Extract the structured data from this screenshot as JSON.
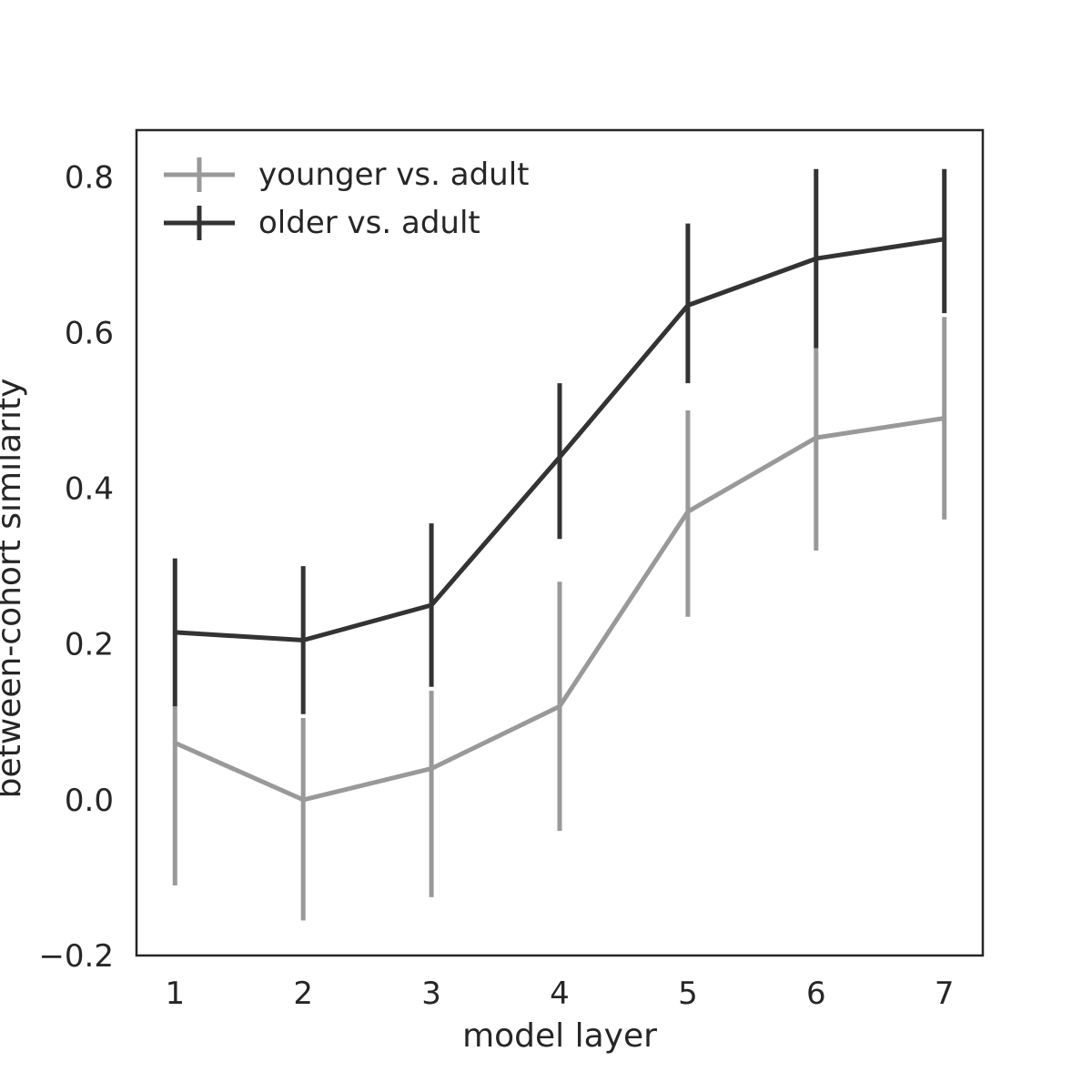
{
  "chart_data": {
    "type": "line",
    "title": "",
    "xlabel": "model layer",
    "ylabel": "between-cohort similarity",
    "x": [
      1,
      2,
      3,
      4,
      5,
      6,
      7
    ],
    "xlim": [
      0.7,
      7.3
    ],
    "ylim": [
      -0.2,
      0.86
    ],
    "yticks": [
      -0.2,
      0.0,
      0.2,
      0.4,
      0.6,
      0.8
    ],
    "ytick_labels": [
      "−0.2",
      "0.0",
      "0.2",
      "0.4",
      "0.6",
      "0.8"
    ],
    "xtick_labels": [
      "1",
      "2",
      "3",
      "4",
      "5",
      "6",
      "7"
    ],
    "grid": false,
    "legend_position": "top-left",
    "series": [
      {
        "name": "younger vs. adult",
        "color": "#999999",
        "values": [
          0.073,
          0.0,
          0.04,
          0.12,
          0.37,
          0.465,
          0.49
        ],
        "err_low": [
          -0.11,
          -0.155,
          -0.125,
          -0.04,
          0.235,
          0.32,
          0.36
        ],
        "err_high": [
          0.12,
          0.105,
          0.14,
          0.28,
          0.5,
          0.58,
          0.62
        ]
      },
      {
        "name": "older vs. adult",
        "color": "#333333",
        "values": [
          0.215,
          0.205,
          0.25,
          0.44,
          0.635,
          0.695,
          0.72
        ],
        "err_low": [
          0.12,
          0.11,
          0.145,
          0.335,
          0.535,
          0.58,
          0.625
        ],
        "err_high": [
          0.31,
          0.3,
          0.355,
          0.535,
          0.74,
          0.81,
          0.81
        ]
      }
    ]
  }
}
